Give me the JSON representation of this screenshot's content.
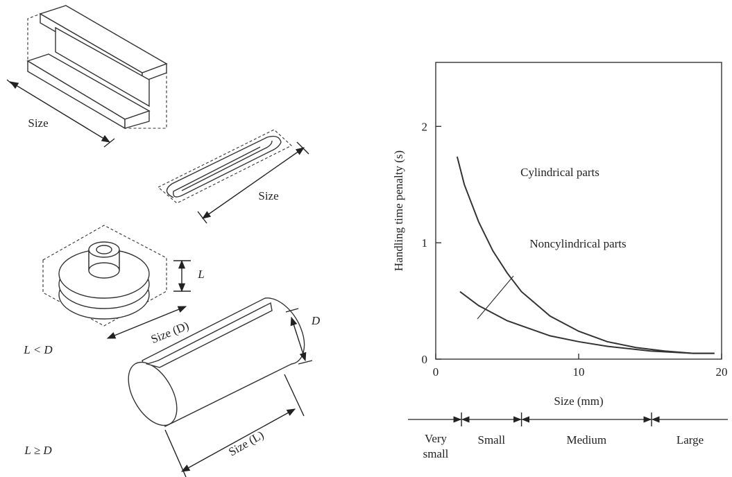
{
  "diagram": {
    "beam_size": "Size",
    "clip_size": "Size",
    "disk_length": "L",
    "disk_size": "Size (D)",
    "disk_condition": "L < D",
    "cylinder_diameter": "D",
    "cylinder_condition": "L ≥ D",
    "cylinder_size": "Size (L)"
  },
  "chart_data": {
    "type": "line",
    "x_label": "Size (mm)",
    "y_label": "Handling time penalty (s)",
    "xlim": [
      0,
      20
    ],
    "xticks": [
      0,
      10,
      20
    ],
    "ylim": [
      0,
      2.55
    ],
    "yticks": [
      0,
      1,
      2
    ],
    "grid": false,
    "series": [
      {
        "name": "Cylindrical parts",
        "color": "#333333",
        "x": [
          1.5,
          2,
          3,
          4,
          5,
          6,
          8,
          10,
          12,
          14,
          16,
          18,
          19.5
        ],
        "values": [
          1.74,
          1.5,
          1.18,
          0.93,
          0.74,
          0.58,
          0.37,
          0.24,
          0.15,
          0.1,
          0.07,
          0.05,
          0.05
        ]
      },
      {
        "name": "Noncylindrical parts",
        "color": "#333333",
        "x": [
          1.7,
          3,
          5,
          8,
          10,
          12,
          15,
          18,
          19.5
        ],
        "values": [
          0.58,
          0.46,
          0.33,
          0.2,
          0.15,
          0.11,
          0.07,
          0.05,
          0.05
        ]
      }
    ],
    "size_classes": {
      "boundaries": [
        1.8,
        6,
        15.1
      ],
      "labels": [
        "Very small",
        "Small",
        "Medium",
        "Large"
      ]
    }
  }
}
